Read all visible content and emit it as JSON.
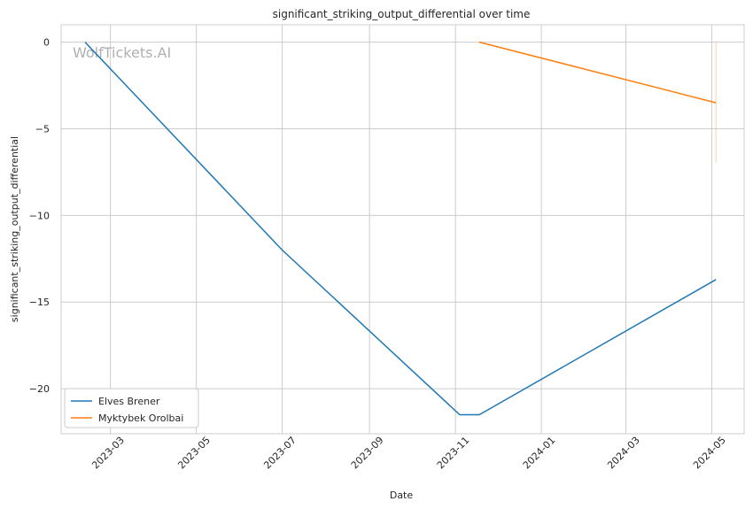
{
  "chart_data": {
    "type": "line",
    "title": "significant_striking_output_differential over time",
    "xlabel": "Date",
    "ylabel": "significant_striking_output_differential",
    "watermark": "WolfTickets.AI",
    "x_ticks": [
      "2023-03",
      "2023-05",
      "2023-07",
      "2023-09",
      "2023-11",
      "2024-01",
      "2024-03",
      "2024-05"
    ],
    "y_ticks": [
      0,
      -5,
      -10,
      -15,
      -20
    ],
    "y_tick_labels": [
      "0",
      "−5",
      "−10",
      "−15",
      "−20"
    ],
    "xlim": [
      "2023-01-25",
      "2024-05-24"
    ],
    "ylim": [
      -22.6,
      1.0
    ],
    "grid": true,
    "legend_position": "lower-left",
    "series": [
      {
        "name": "Elves Brener",
        "color": "#1f77b4",
        "points": [
          {
            "x": "2023-02-11",
            "y": 0
          },
          {
            "x": "2023-07-01",
            "y": -12.0
          },
          {
            "x": "2023-11-04",
            "y": -21.5
          },
          {
            "x": "2023-11-18",
            "y": -21.5
          },
          {
            "x": "2024-05-04",
            "y": -13.7
          }
        ]
      },
      {
        "name": "Myktybek Orolbai",
        "color": "#ff7f0e",
        "points": [
          {
            "x": "2023-11-18",
            "y": 0
          },
          {
            "x": "2024-05-04",
            "y": -3.5
          }
        ]
      }
    ],
    "faint_band": {
      "x": "2024-05-04",
      "y_range": [
        -7.0,
        0
      ],
      "color": "#ff7f0e"
    }
  }
}
